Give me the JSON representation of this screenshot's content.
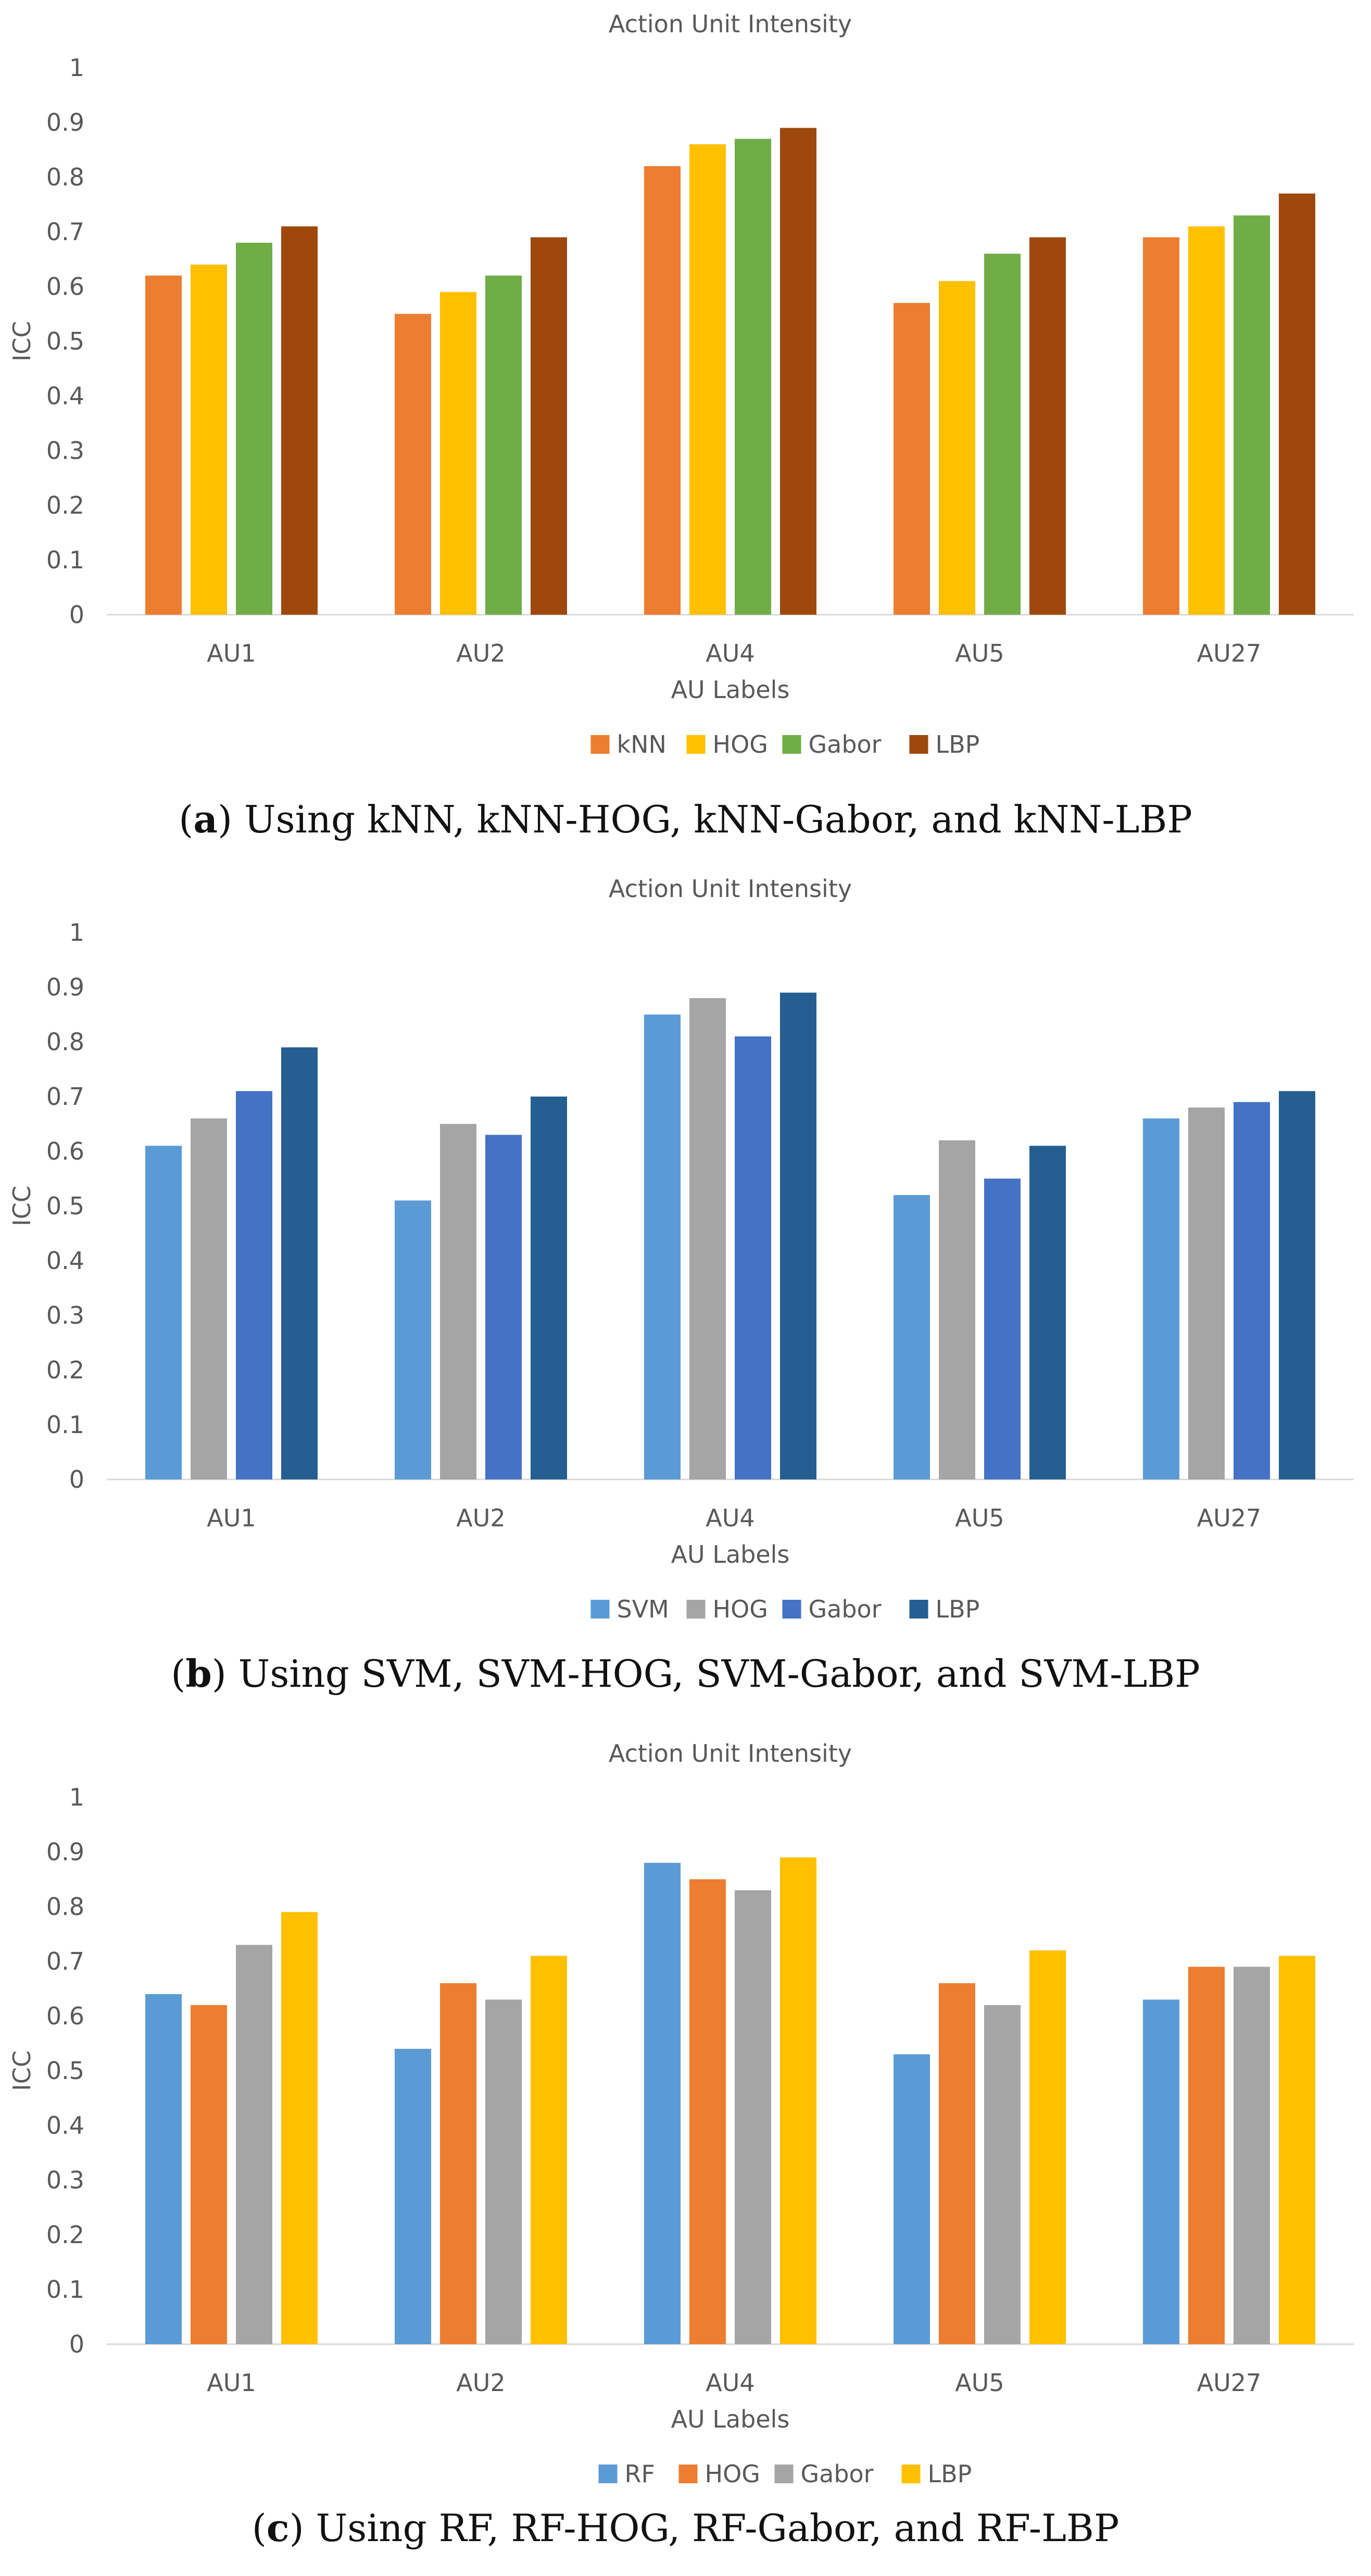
{
  "chart_data": [
    {
      "type": "bar",
      "title": "Action Unit Intensity",
      "xlabel": "AU Labels",
      "ylabel": "ICC",
      "ylim": [
        0,
        1
      ],
      "yticks": [
        "0",
        "0.1",
        "0.2",
        "0.3",
        "0.4",
        "0.5",
        "0.6",
        "0.7",
        "0.8",
        "0.9",
        "1"
      ],
      "legend_position": "bottom",
      "grid": false,
      "categories": [
        "AU1",
        "AU2",
        "AU4",
        "AU5",
        "AU27"
      ],
      "series": [
        {
          "name": "kNN",
          "color": "#ED7D31",
          "values": [
            0.62,
            0.55,
            0.82,
            0.57,
            0.69
          ]
        },
        {
          "name": "HOG",
          "color": "#FFC000",
          "values": [
            0.64,
            0.59,
            0.86,
            0.61,
            0.71
          ]
        },
        {
          "name": "Gabor",
          "color": "#70AD47",
          "values": [
            0.68,
            0.62,
            0.87,
            0.66,
            0.73
          ]
        },
        {
          "name": "LBP",
          "color": "#9E480E",
          "values": [
            0.71,
            0.69,
            0.89,
            0.69,
            0.77
          ]
        }
      ]
    },
    {
      "type": "bar",
      "title": "Action Unit Intensity",
      "xlabel": "AU Labels",
      "ylabel": "ICC",
      "ylim": [
        0,
        1
      ],
      "yticks": [
        "0",
        "0.1",
        "0.2",
        "0.3",
        "0.4",
        "0.5",
        "0.6",
        "0.7",
        "0.8",
        "0.9",
        "1"
      ],
      "legend_position": "bottom",
      "grid": false,
      "categories": [
        "AU1",
        "AU2",
        "AU4",
        "AU5",
        "AU27"
      ],
      "series": [
        {
          "name": "SVM",
          "color": "#5B9BD5",
          "values": [
            0.61,
            0.51,
            0.85,
            0.52,
            0.66
          ]
        },
        {
          "name": "HOG",
          "color": "#A5A5A5",
          "values": [
            0.66,
            0.65,
            0.88,
            0.62,
            0.68
          ]
        },
        {
          "name": "Gabor",
          "color": "#4472C4",
          "values": [
            0.71,
            0.63,
            0.81,
            0.55,
            0.69
          ]
        },
        {
          "name": "LBP",
          "color": "#255E91",
          "values": [
            0.79,
            0.7,
            0.89,
            0.61,
            0.71
          ]
        }
      ]
    },
    {
      "type": "bar",
      "title": "Action Unit Intensity",
      "xlabel": "AU Labels",
      "ylabel": "ICC",
      "ylim": [
        0,
        1
      ],
      "yticks": [
        "0",
        "0.1",
        "0.2",
        "0.3",
        "0.4",
        "0.5",
        "0.6",
        "0.7",
        "0.8",
        "0.9",
        "1"
      ],
      "legend_position": "bottom",
      "grid": false,
      "categories": [
        "AU1",
        "AU2",
        "AU4",
        "AU5",
        "AU27"
      ],
      "series": [
        {
          "name": "RF",
          "color": "#5B9BD5",
          "values": [
            0.64,
            0.54,
            0.88,
            0.53,
            0.63
          ]
        },
        {
          "name": "HOG",
          "color": "#ED7D31",
          "values": [
            0.62,
            0.66,
            0.85,
            0.66,
            0.69
          ]
        },
        {
          "name": "Gabor",
          "color": "#A5A5A5",
          "values": [
            0.73,
            0.63,
            0.83,
            0.62,
            0.69
          ]
        },
        {
          "name": "LBP",
          "color": "#FFC000",
          "values": [
            0.79,
            0.71,
            0.89,
            0.72,
            0.71
          ]
        }
      ]
    }
  ],
  "captions": [
    {
      "letter": "a",
      "text": " Using kNN, kNN-HOG, kNN-Gabor, and kNN-LBP"
    },
    {
      "letter": "b",
      "text": " Using SVM, SVM-HOG, SVM-Gabor, and SVM-LBP"
    },
    {
      "letter": "c",
      "text": " Using RF, RF-HOG, RF-Gabor, and RF-LBP"
    }
  ]
}
